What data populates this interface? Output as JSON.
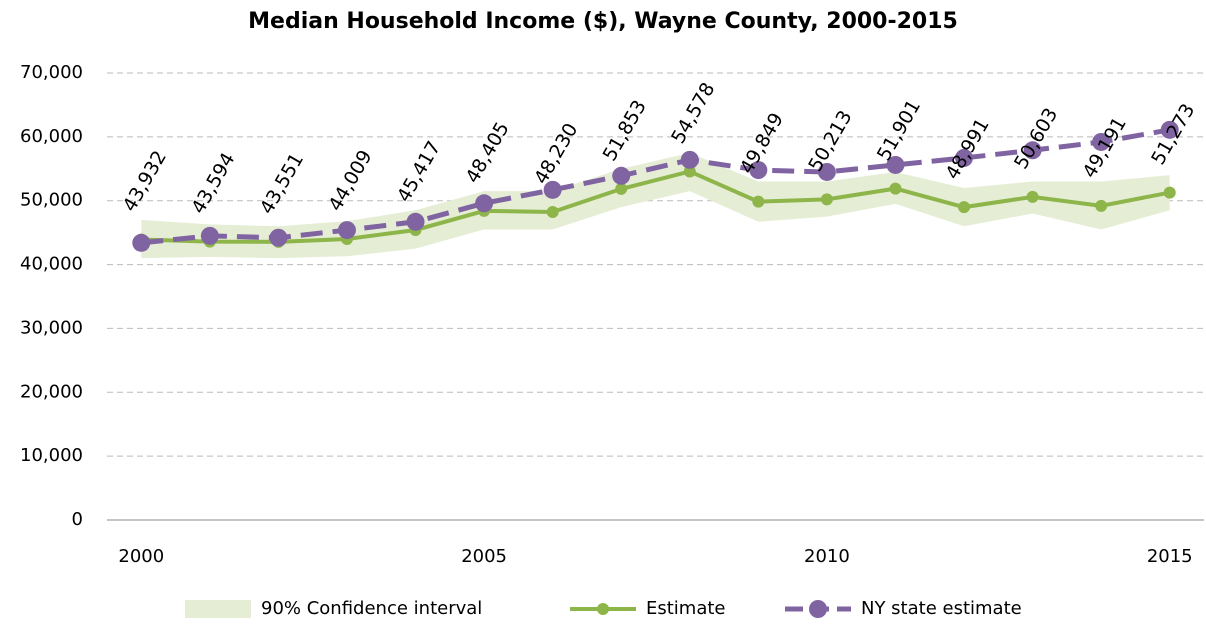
{
  "chart_data": {
    "type": "line",
    "title": "Median Household Income ($), Wayne County, 2000-2015",
    "x": [
      2000,
      2001,
      2002,
      2003,
      2004,
      2005,
      2006,
      2007,
      2008,
      2009,
      2010,
      2011,
      2012,
      2013,
      2014,
      2015
    ],
    "xlim": [
      1999.5,
      2015.5
    ],
    "xticks": [
      2000,
      2005,
      2010,
      2015
    ],
    "ylim": [
      0,
      70000
    ],
    "yticks": [
      0,
      {
        "value": 10000,
        "label": "10,000"
      },
      {
        "value": 20000,
        "label": "20,000"
      },
      {
        "value": 30000,
        "label": "30,000"
      },
      {
        "value": 40000,
        "label": "40,000"
      },
      {
        "value": 50000,
        "label": "50,000"
      },
      {
        "value": 60000,
        "label": "60,000"
      },
      {
        "value": 70000,
        "label": "70,000"
      }
    ],
    "grid": true,
    "legend": "bottom",
    "series": [
      {
        "name": "90% Confidence interval",
        "color": "#e5eed5",
        "lower": [
          41000,
          41200,
          41000,
          41300,
          42500,
          45500,
          45500,
          49000,
          51500,
          46700,
          47500,
          49500,
          46000,
          48000,
          45500,
          48500
        ],
        "upper": [
          47000,
          46300,
          46000,
          46800,
          48500,
          51500,
          51500,
          55000,
          57500,
          53000,
          53000,
          54500,
          52000,
          53000,
          53000,
          54000
        ]
      },
      {
        "name": "Estimate",
        "color": "#8db54a",
        "values": [
          43932,
          43594,
          43551,
          44009,
          45417,
          48405,
          48230,
          51853,
          54578,
          49849,
          50213,
          51901,
          48991,
          50603,
          49191,
          51273
        ],
        "value_labels": [
          "43,932",
          "43,594",
          "43,551",
          "44,009",
          "45,417",
          "48,405",
          "48,230",
          "51,853",
          "54,578",
          "49,849",
          "50,213",
          "51,901",
          "48,991",
          "50,603",
          "49,191",
          "51,273"
        ]
      },
      {
        "name": "NY state estimate",
        "color": "#8064a2",
        "dashed": true,
        "values": [
          43400,
          44500,
          44200,
          45400,
          46700,
          49600,
          51700,
          53900,
          56400,
          54800,
          54500,
          55600,
          56700,
          57900,
          59200,
          61100
        ]
      }
    ]
  }
}
